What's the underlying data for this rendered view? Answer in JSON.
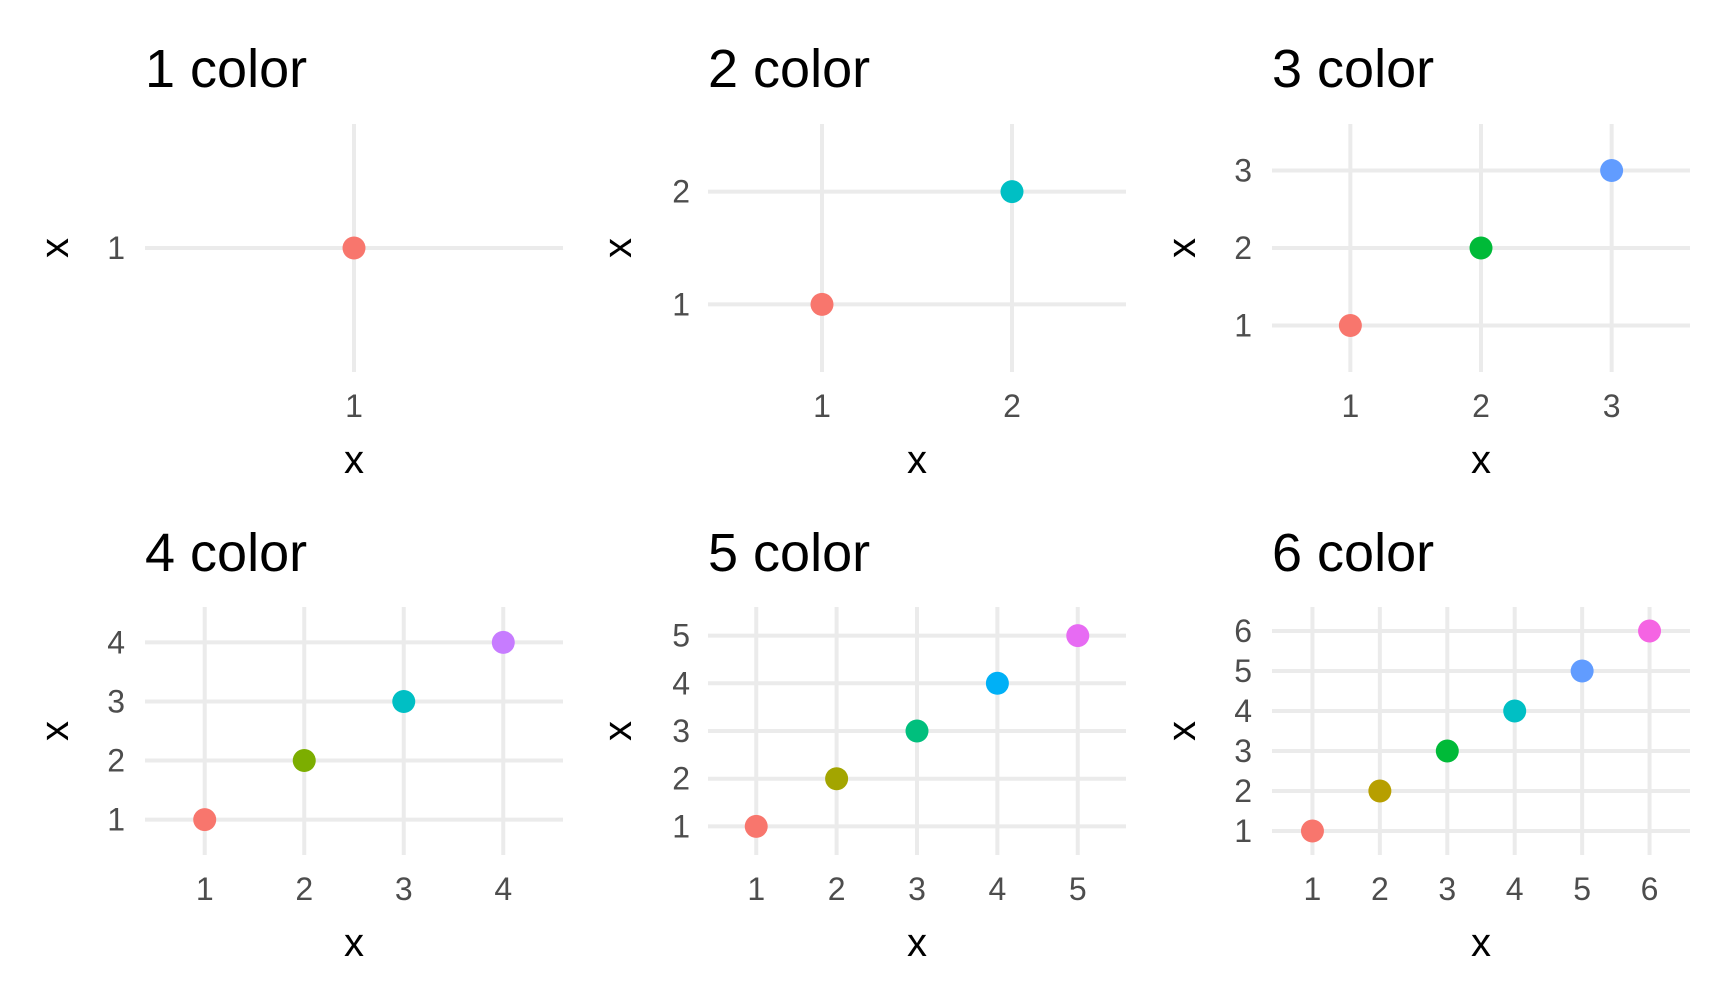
{
  "chart_data": [
    {
      "type": "scatter",
      "title": "1 color",
      "xlabel": "x",
      "ylabel": "x",
      "xlim": [
        0.4,
        1.6
      ],
      "ylim": [
        0.4,
        1.6
      ],
      "x_ticks": [
        "1"
      ],
      "y_ticks": [
        "1"
      ],
      "grid": true,
      "legend": "none",
      "points": [
        {
          "x": 1,
          "y": 1,
          "color": "#F8766D"
        }
      ]
    },
    {
      "type": "scatter",
      "title": "2 color",
      "xlabel": "x",
      "ylabel": "x",
      "xlim": [
        0.4,
        2.6
      ],
      "ylim": [
        0.4,
        2.6
      ],
      "x_ticks": [
        "1",
        "2"
      ],
      "y_ticks": [
        "1",
        "2"
      ],
      "grid": true,
      "legend": "none",
      "points": [
        {
          "x": 1,
          "y": 1,
          "color": "#F8766D"
        },
        {
          "x": 2,
          "y": 2,
          "color": "#00BFC4"
        }
      ]
    },
    {
      "type": "scatter",
      "title": "3 color",
      "xlabel": "x",
      "ylabel": "x",
      "xlim": [
        0.4,
        3.6
      ],
      "ylim": [
        0.4,
        3.6
      ],
      "x_ticks": [
        "1",
        "2",
        "3"
      ],
      "y_ticks": [
        "1",
        "2",
        "3"
      ],
      "grid": true,
      "legend": "none",
      "points": [
        {
          "x": 1,
          "y": 1,
          "color": "#F8766D"
        },
        {
          "x": 2,
          "y": 2,
          "color": "#00BA38"
        },
        {
          "x": 3,
          "y": 3,
          "color": "#619CFF"
        }
      ]
    },
    {
      "type": "scatter",
      "title": "4 color",
      "xlabel": "x",
      "ylabel": "x",
      "xlim": [
        0.4,
        4.6
      ],
      "ylim": [
        0.4,
        4.6
      ],
      "x_ticks": [
        "1",
        "2",
        "3",
        "4"
      ],
      "y_ticks": [
        "1",
        "2",
        "3",
        "4"
      ],
      "grid": true,
      "legend": "none",
      "points": [
        {
          "x": 1,
          "y": 1,
          "color": "#F8766D"
        },
        {
          "x": 2,
          "y": 2,
          "color": "#7CAE00"
        },
        {
          "x": 3,
          "y": 3,
          "color": "#00BFC4"
        },
        {
          "x": 4,
          "y": 4,
          "color": "#C77CFF"
        }
      ]
    },
    {
      "type": "scatter",
      "title": "5 color",
      "xlabel": "x",
      "ylabel": "x",
      "xlim": [
        0.4,
        5.6
      ],
      "ylim": [
        0.4,
        5.6
      ],
      "x_ticks": [
        "1",
        "2",
        "3",
        "4",
        "5"
      ],
      "y_ticks": [
        "1",
        "2",
        "3",
        "4",
        "5"
      ],
      "grid": true,
      "legend": "none",
      "points": [
        {
          "x": 1,
          "y": 1,
          "color": "#F8766D"
        },
        {
          "x": 2,
          "y": 2,
          "color": "#A3A500"
        },
        {
          "x": 3,
          "y": 3,
          "color": "#00BF7D"
        },
        {
          "x": 4,
          "y": 4,
          "color": "#00B0F6"
        },
        {
          "x": 5,
          "y": 5,
          "color": "#E76BF3"
        }
      ]
    },
    {
      "type": "scatter",
      "title": "6 color",
      "xlabel": "x",
      "ylabel": "x",
      "xlim": [
        0.4,
        6.6
      ],
      "ylim": [
        0.4,
        6.6
      ],
      "x_ticks": [
        "1",
        "2",
        "3",
        "4",
        "5",
        "6"
      ],
      "y_ticks": [
        "1",
        "2",
        "3",
        "4",
        "5",
        "6"
      ],
      "grid": true,
      "legend": "none",
      "points": [
        {
          "x": 1,
          "y": 1,
          "color": "#F8766D"
        },
        {
          "x": 2,
          "y": 2,
          "color": "#B79F00"
        },
        {
          "x": 3,
          "y": 3,
          "color": "#00BA38"
        },
        {
          "x": 4,
          "y": 4,
          "color": "#00BFC4"
        },
        {
          "x": 5,
          "y": 5,
          "color": "#619CFF"
        },
        {
          "x": 6,
          "y": 6,
          "color": "#F564E3"
        }
      ]
    }
  ]
}
